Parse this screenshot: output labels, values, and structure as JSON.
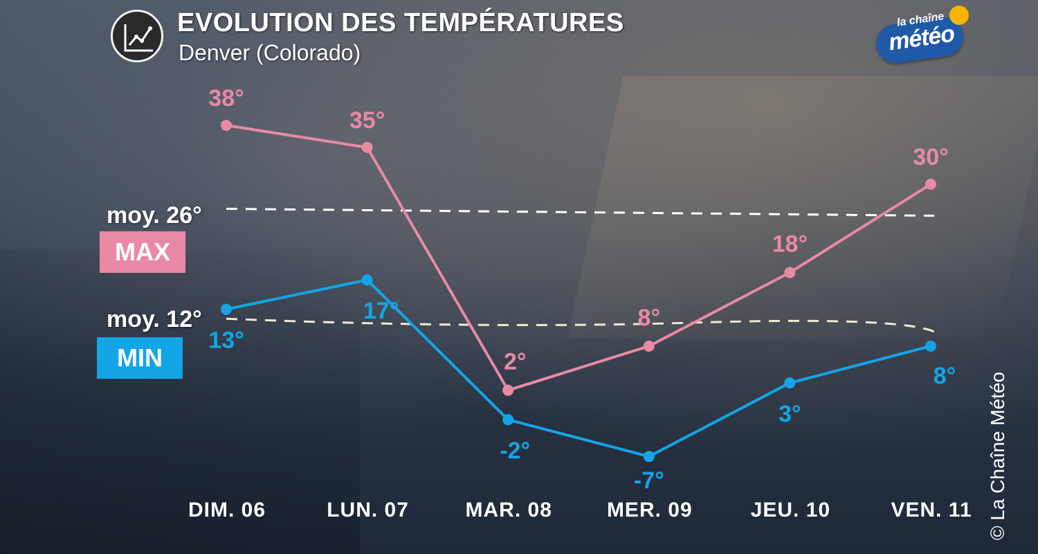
{
  "header": {
    "title": "EVOLUTION DES TEMPÉRATURES",
    "subtitle": "Denver (Colorado)",
    "icon": "line-chart-icon"
  },
  "logo": {
    "line1": "la chaîne",
    "line2": "météo"
  },
  "copyright": "© La Chaîne Météo",
  "legend": {
    "max_label": "MAX",
    "min_label": "MIN"
  },
  "colors": {
    "max": "#e98aa5",
    "min": "#14a5e6",
    "avg_max": "#ffffff",
    "avg_min": "#f0ead2"
  },
  "chart_data": {
    "type": "line",
    "title": "EVOLUTION DES TEMPÉRATURES",
    "subtitle": "Denver (Colorado)",
    "categories": [
      "DIM. 06",
      "LUN. 07",
      "MAR. 08",
      "MER. 09",
      "JEU. 10",
      "VEN. 11"
    ],
    "series": [
      {
        "name": "MAX",
        "values": [
          38,
          35,
          2,
          8,
          18,
          30
        ],
        "labels": [
          "38°",
          "35°",
          "2°",
          "8°",
          "18°",
          "30°"
        ],
        "color": "#e98aa5"
      },
      {
        "name": "MIN",
        "values": [
          13,
          17,
          -2,
          -7,
          3,
          8
        ],
        "labels": [
          "13°",
          "17°",
          "-2°",
          "-7°",
          "3°",
          "8°"
        ],
        "color": "#14a5e6"
      }
    ],
    "averages": [
      {
        "label": "moy. 26°",
        "value": 26,
        "series": "MAX"
      },
      {
        "label": "moy. 12°",
        "value": 12,
        "series": "MIN"
      }
    ],
    "grid": false,
    "legend_position": "left"
  }
}
